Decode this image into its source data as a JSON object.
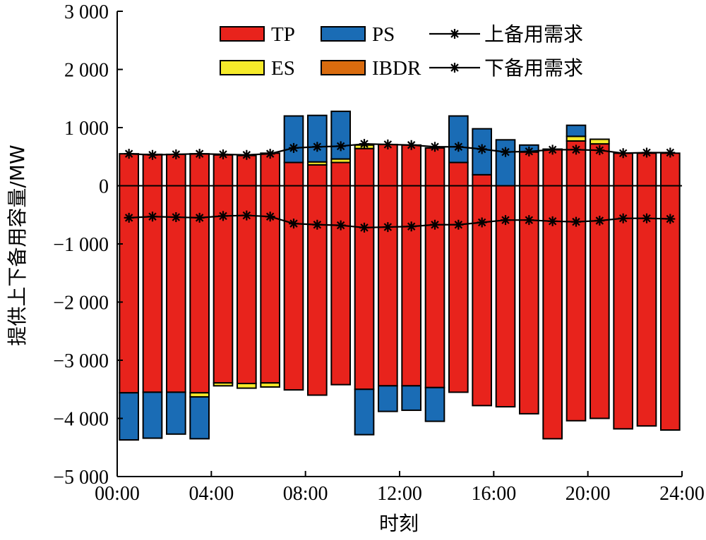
{
  "chart_data": {
    "type": "bar",
    "stacked": true,
    "xlabel": "时刻",
    "ylabel": "提供上下备用容量/MW",
    "ylim": [
      -5000,
      3000
    ],
    "yticks": [
      3000,
      2000,
      1000,
      0,
      -1000,
      -2000,
      -3000,
      -4000,
      -5000
    ],
    "ytick_labels": [
      "3 000",
      "2 000",
      "1 000",
      "0",
      "−1 000",
      "−2 000",
      "−3 000",
      "−4 000",
      "−5 000"
    ],
    "xlim": [
      0,
      24
    ],
    "xticks": [
      0,
      4,
      8,
      12,
      16,
      20,
      24
    ],
    "xtick_labels": [
      "00:00",
      "04:00",
      "08:00",
      "12:00",
      "16:00",
      "20:00",
      "24:00"
    ],
    "categories": [
      1,
      2,
      3,
      4,
      5,
      6,
      7,
      8,
      9,
      10,
      11,
      12,
      13,
      14,
      15,
      16,
      17,
      18,
      19,
      20,
      21,
      22,
      23,
      24
    ],
    "up_series": [
      {
        "name": "TP",
        "color": "#e8231c",
        "values": [
          550,
          540,
          540,
          550,
          530,
          520,
          560,
          400,
          360,
          400,
          640,
          710,
          700,
          650,
          400,
          190,
          0,
          580,
          630,
          770,
          720,
          560,
          560,
          560
        ]
      },
      {
        "name": "ES",
        "color": "#f5ea2a",
        "values": [
          0,
          0,
          0,
          0,
          0,
          0,
          0,
          0,
          50,
          60,
          60,
          0,
          0,
          0,
          0,
          0,
          0,
          0,
          0,
          80,
          80,
          0,
          0,
          0
        ]
      },
      {
        "name": "IBDR",
        "color": "#d96b0e",
        "values": [
          0,
          0,
          0,
          0,
          0,
          0,
          0,
          0,
          0,
          0,
          0,
          0,
          0,
          0,
          0,
          0,
          0,
          0,
          0,
          0,
          0,
          0,
          0,
          0
        ]
      },
      {
        "name": "PS",
        "color": "#1a6cb5",
        "values": [
          0,
          0,
          0,
          0,
          0,
          0,
          0,
          800,
          800,
          820,
          0,
          0,
          0,
          0,
          800,
          790,
          790,
          120,
          0,
          190,
          0,
          0,
          0,
          0
        ]
      }
    ],
    "down_series": [
      {
        "name": "TP",
        "color": "#e8231c",
        "values": [
          -3560,
          -3550,
          -3550,
          -3560,
          -3390,
          -3400,
          -3390,
          -3510,
          -3600,
          -3420,
          -3500,
          -3440,
          -3440,
          -3470,
          -3550,
          -3780,
          -3800,
          -3920,
          -4350,
          -4040,
          -4000,
          -4180,
          -4130,
          -4200
        ]
      },
      {
        "name": "ES",
        "color": "#f5ea2a",
        "values": [
          0,
          0,
          0,
          -70,
          -50,
          -80,
          -70,
          0,
          0,
          0,
          0,
          0,
          0,
          0,
          0,
          0,
          0,
          0,
          0,
          0,
          0,
          0,
          0,
          0
        ]
      },
      {
        "name": "IBDR",
        "color": "#d96b0e",
        "values": [
          0,
          0,
          0,
          0,
          0,
          0,
          0,
          0,
          0,
          0,
          0,
          0,
          0,
          0,
          0,
          0,
          0,
          0,
          0,
          0,
          0,
          0,
          0,
          0
        ]
      },
      {
        "name": "PS",
        "color": "#1a6cb5",
        "values": [
          -810,
          -790,
          -720,
          -720,
          0,
          0,
          0,
          0,
          0,
          0,
          -780,
          -440,
          -420,
          -580,
          0,
          0,
          0,
          0,
          0,
          0,
          0,
          0,
          0,
          0
        ]
      }
    ],
    "line_series": [
      {
        "name": "上备用需求",
        "color": "#000000",
        "marker": "star",
        "x": [
          0.5,
          1.5,
          2.5,
          3.5,
          4.5,
          5.5,
          6.5,
          7.5,
          8.5,
          9.5,
          10.5,
          11.5,
          12.5,
          13.5,
          14.5,
          15.5,
          16.5,
          17.5,
          18.5,
          19.5,
          20.5,
          21.5,
          22.5,
          23.5
        ],
        "values": [
          550,
          530,
          540,
          550,
          540,
          530,
          550,
          650,
          670,
          680,
          720,
          710,
          700,
          670,
          670,
          630,
          580,
          590,
          620,
          620,
          610,
          560,
          570,
          570
        ]
      },
      {
        "name": "下备用需求",
        "color": "#000000",
        "marker": "star",
        "x": [
          0.5,
          1.5,
          2.5,
          3.5,
          4.5,
          5.5,
          6.5,
          7.5,
          8.5,
          9.5,
          10.5,
          11.5,
          12.5,
          13.5,
          14.5,
          15.5,
          16.5,
          17.5,
          18.5,
          19.5,
          20.5,
          21.5,
          22.5,
          23.5
        ],
        "values": [
          -550,
          -530,
          -540,
          -550,
          -520,
          -510,
          -530,
          -650,
          -670,
          -680,
          -720,
          -710,
          -700,
          -670,
          -670,
          -630,
          -590,
          -590,
          -610,
          -620,
          -600,
          -560,
          -560,
          -570
        ]
      }
    ],
    "legend": {
      "position": "top-center",
      "items": [
        {
          "label": "TP",
          "kind": "patch",
          "color": "#e8231c"
        },
        {
          "label": "PS",
          "kind": "patch",
          "color": "#1a6cb5"
        },
        {
          "label": "上备用需求",
          "kind": "line-star",
          "color": "#000000"
        },
        {
          "label": "ES",
          "kind": "patch",
          "color": "#f5ea2a"
        },
        {
          "label": "IBDR",
          "kind": "patch",
          "color": "#d96b0e"
        },
        {
          "label": "下备用需求",
          "kind": "line-star",
          "color": "#000000"
        }
      ]
    },
    "grid": false
  }
}
